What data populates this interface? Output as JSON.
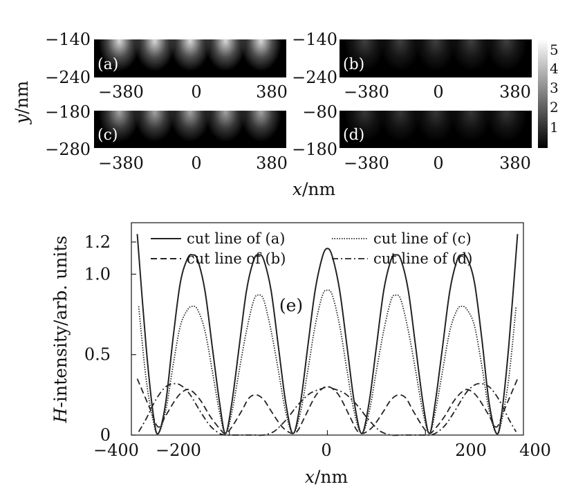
{
  "heatmaps": {
    "type": "heatmap",
    "ylabel_var": "y",
    "ylabel_unit": "/nm",
    "xlabel_var": "x",
    "xlabel_unit": "/nm",
    "colorbar": {
      "ticks": [
        "5",
        "4",
        "3",
        "2",
        "1"
      ],
      "range": [
        0,
        5.5
      ],
      "colormap": "gray"
    },
    "panels": [
      {
        "label": "(a)",
        "x_ticks": [
          "−380",
          "0",
          "380"
        ],
        "y_ticks": [
          "−140",
          "−240"
        ],
        "xlim": [
          -380,
          380
        ],
        "ylim": [
          -240,
          -140
        ],
        "peak_intensity": 1.2
      },
      {
        "label": "(b)",
        "x_ticks": [
          "−380",
          "0",
          "380"
        ],
        "y_ticks": [
          "−140",
          "−240"
        ],
        "xlim": [
          -380,
          380
        ],
        "ylim": [
          -240,
          -140
        ],
        "peak_intensity": 0.35
      },
      {
        "label": "(c)",
        "x_ticks": [
          "−380",
          "0",
          "380"
        ],
        "y_ticks": [
          "−180",
          "−280"
        ],
        "xlim": [
          -380,
          380
        ],
        "ylim": [
          -280,
          -180
        ],
        "peak_intensity": 0.9
      },
      {
        "label": "(d)",
        "x_ticks": [
          "−380",
          "0",
          "380"
        ],
        "y_ticks": [
          "−80",
          "−180"
        ],
        "xlim": [
          -380,
          380
        ],
        "ylim": [
          -180,
          -80
        ],
        "peak_intensity": 0.3
      }
    ]
  },
  "chart_data": {
    "type": "line",
    "annotation": "(e)",
    "xlabel_var": "x",
    "xlabel_unit": "/nm",
    "ylabel_var": "H",
    "ylabel_rest": "-intensity/arb. units",
    "xlim": [
      -400,
      400
    ],
    "ylim": [
      0,
      1.32
    ],
    "x_ticks": [
      -400,
      -200,
      0,
      200,
      400
    ],
    "x_tick_labels": [
      "−400",
      "−200",
      "0",
      "200",
      "400"
    ],
    "y_ticks": [
      0,
      0.5,
      1.0,
      1.2
    ],
    "y_tick_labels": [
      "0",
      "0.5",
      "1.0",
      "1.2"
    ],
    "legend_position": "top",
    "series": [
      {
        "name": "cut line of (a)",
        "dash": "solid",
        "x": [
          -388,
          -370,
          -355,
          -345,
          -330,
          -315,
          -300,
          -285,
          -275,
          -265,
          -250,
          -235,
          -220,
          -208,
          -195,
          -180,
          -165,
          -150,
          -140,
          -130,
          -115,
          -100,
          -85,
          -70,
          -55,
          -40,
          -25,
          -10,
          0,
          10,
          25,
          40,
          55,
          70,
          85,
          100,
          115,
          130,
          140,
          150,
          165,
          180,
          195,
          208,
          220,
          235,
          250,
          265,
          275,
          285,
          300,
          315,
          330,
          345,
          355,
          370,
          388
        ],
        "y": [
          1.25,
          0.55,
          0.12,
          0.01,
          0.2,
          0.6,
          0.95,
          1.1,
          1.12,
          1.09,
          0.9,
          0.55,
          0.2,
          0.01,
          0.2,
          0.55,
          0.9,
          1.09,
          1.12,
          1.09,
          0.9,
          0.55,
          0.2,
          0.01,
          0.2,
          0.55,
          0.9,
          1.11,
          1.16,
          1.11,
          0.9,
          0.55,
          0.2,
          0.01,
          0.2,
          0.55,
          0.9,
          1.09,
          1.12,
          1.09,
          0.9,
          0.55,
          0.2,
          0.01,
          0.2,
          0.55,
          0.9,
          1.09,
          1.12,
          1.1,
          0.95,
          0.6,
          0.2,
          0.01,
          0.12,
          0.55,
          1.25
        ]
      },
      {
        "name": "cut line of (b)",
        "dash": "dashed",
        "x": [
          -388,
          -360,
          -345,
          -330,
          -310,
          -295,
          -280,
          -260,
          -240,
          -220,
          -208,
          -195,
          -175,
          -160,
          -145,
          -130,
          -115,
          -95,
          -80,
          -70,
          -60,
          -45,
          -25,
          -10,
          0,
          10,
          25,
          45,
          60,
          70,
          80,
          95,
          115,
          130,
          145,
          160,
          175,
          195,
          208,
          220,
          240,
          260,
          280,
          295,
          310,
          330,
          345,
          360,
          388
        ],
        "y": [
          0.35,
          0.15,
          0.05,
          0.12,
          0.22,
          0.27,
          0.28,
          0.22,
          0.12,
          0.04,
          0.01,
          0.05,
          0.15,
          0.23,
          0.25,
          0.22,
          0.15,
          0.06,
          0.02,
          0.01,
          0.03,
          0.12,
          0.24,
          0.29,
          0.3,
          0.29,
          0.24,
          0.12,
          0.03,
          0.01,
          0.02,
          0.06,
          0.15,
          0.22,
          0.25,
          0.23,
          0.15,
          0.05,
          0.01,
          0.04,
          0.12,
          0.22,
          0.28,
          0.27,
          0.22,
          0.12,
          0.05,
          0.15,
          0.35
        ]
      },
      {
        "name": "cut line of (c)",
        "dash": "dotted",
        "x": [
          -385,
          -370,
          -355,
          -345,
          -330,
          -315,
          -300,
          -285,
          -275,
          -265,
          -250,
          -235,
          -220,
          -208,
          -195,
          -180,
          -165,
          -150,
          -140,
          -130,
          -115,
          -100,
          -85,
          -70,
          -55,
          -40,
          -25,
          -10,
          0,
          10,
          25,
          40,
          55,
          70,
          85,
          100,
          115,
          130,
          140,
          150,
          165,
          180,
          195,
          208,
          220,
          235,
          250,
          265,
          275,
          285,
          300,
          315,
          330,
          345,
          355,
          370,
          385
        ],
        "y": [
          0.8,
          0.35,
          0.08,
          0.01,
          0.15,
          0.43,
          0.68,
          0.78,
          0.8,
          0.78,
          0.65,
          0.4,
          0.14,
          0.01,
          0.14,
          0.4,
          0.65,
          0.84,
          0.87,
          0.84,
          0.65,
          0.4,
          0.14,
          0.01,
          0.14,
          0.4,
          0.68,
          0.87,
          0.9,
          0.87,
          0.68,
          0.4,
          0.14,
          0.01,
          0.14,
          0.4,
          0.65,
          0.84,
          0.87,
          0.84,
          0.65,
          0.4,
          0.14,
          0.01,
          0.14,
          0.4,
          0.65,
          0.78,
          0.8,
          0.78,
          0.68,
          0.43,
          0.15,
          0.01,
          0.08,
          0.35,
          0.8
        ]
      },
      {
        "name": "cut line of (d)",
        "dash": "dashdot",
        "x": [
          -385,
          -370,
          -350,
          -330,
          -310,
          -295,
          -280,
          -260,
          -240,
          -220,
          -205,
          -190,
          -170,
          -150,
          -130,
          -110,
          -95,
          -80,
          -65,
          -50,
          -35,
          -20,
          -10,
          0,
          10,
          20,
          35,
          50,
          65,
          80,
          95,
          110,
          130,
          150,
          170,
          190,
          205,
          220,
          240,
          260,
          280,
          295,
          310,
          330,
          350,
          370,
          385
        ],
        "y": [
          0.02,
          0.1,
          0.22,
          0.3,
          0.32,
          0.3,
          0.25,
          0.15,
          0.06,
          0.01,
          0.0,
          0.0,
          0.0,
          0.0,
          0.0,
          0.02,
          0.06,
          0.11,
          0.17,
          0.22,
          0.26,
          0.28,
          0.29,
          0.3,
          0.29,
          0.28,
          0.26,
          0.22,
          0.17,
          0.11,
          0.06,
          0.02,
          0.0,
          0.0,
          0.0,
          0.0,
          0.0,
          0.01,
          0.06,
          0.15,
          0.25,
          0.3,
          0.32,
          0.3,
          0.22,
          0.1,
          0.02
        ]
      }
    ]
  }
}
